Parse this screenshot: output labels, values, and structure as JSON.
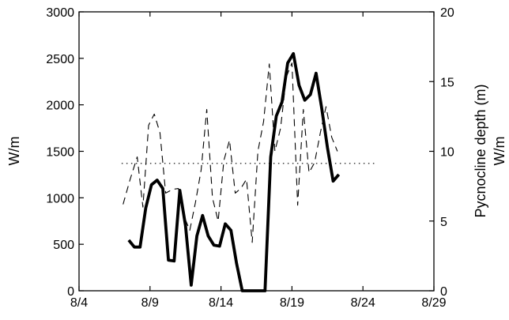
{
  "chart_data": {
    "type": "line",
    "x_ticks": [
      "8/4",
      "8/9",
      "8/14",
      "8/19",
      "8/24",
      "8/29"
    ],
    "x_tick_values": [
      4,
      9,
      14,
      19,
      24,
      29
    ],
    "x_range": [
      4,
      29
    ],
    "ylabel_left": "W/m",
    "ylim_left": [
      0,
      3000
    ],
    "yticks_left": [
      "0",
      "500",
      "1000",
      "1500",
      "2000",
      "2500",
      "3000"
    ],
    "ytick_values_left": [
      0,
      500,
      1000,
      1500,
      2000,
      2500,
      3000
    ],
    "ylabel_right": "Pycnocline depth (m)",
    "ylabel_right_2": "W/m",
    "ylim_right": [
      0,
      20
    ],
    "yticks_right": [
      "0",
      "5",
      "10",
      "15",
      "20"
    ],
    "ytick_values_right": [
      0,
      5,
      10,
      15,
      20
    ],
    "grid": false,
    "series": [
      {
        "style": "thick-solid",
        "axis": "left",
        "color": "#000000",
        "x": [
          7.5,
          7.9,
          8.3,
          8.7,
          9.1,
          9.5,
          9.9,
          10.3,
          10.7,
          11.1,
          11.5,
          11.9,
          12.3,
          12.7,
          13.1,
          13.5,
          13.9,
          14.3,
          14.7,
          15.1,
          15.5,
          15.9,
          16.3,
          16.7,
          17.1,
          17.5,
          17.9,
          18.3,
          18.7,
          19.1,
          19.5,
          19.9,
          20.3,
          20.7,
          21.1,
          21.5,
          21.9,
          22.3,
          22.7,
          23.1,
          23.5,
          23.9,
          24.3,
          24.7,
          25.1,
          25.5
        ],
        "values": [
          545,
          470,
          470,
          890,
          1140,
          1190,
          1100,
          330,
          320,
          1080,
          700,
          60,
          590,
          810,
          590,
          490,
          480,
          720,
          650,
          290,
          0,
          0,
          0,
          0,
          0,
          1440,
          1880,
          2030,
          2450,
          2550,
          2210,
          2050,
          2110,
          2340,
          1960,
          1540,
          1180,
          1250,
          null,
          null,
          null,
          null,
          null,
          null,
          null,
          null
        ]
      },
      {
        "style": "dashed",
        "axis": "left",
        "color": "#000000",
        "x": [
          7.1,
          7.6,
          8.1,
          8.5,
          8.9,
          9.3,
          9.7,
          10.1,
          10.6,
          11.0,
          11.4,
          11.8,
          12.2,
          12.6,
          13.0,
          13.4,
          13.8,
          14.2,
          14.6,
          15.0,
          15.4,
          15.8,
          16.2,
          16.6,
          17.0,
          17.4,
          17.8,
          18.2,
          18.6,
          19.0,
          19.4,
          19.8,
          20.2,
          20.6,
          21.0,
          21.4,
          21.8,
          22.2,
          22.6,
          23.0,
          23.4,
          23.8,
          24.2,
          24.6,
          25.0,
          25.4,
          25.8
        ],
        "values": [
          930,
          1200,
          1440,
          900,
          1780,
          1900,
          1700,
          1050,
          1090,
          1100,
          800,
          650,
          950,
          1300,
          1950,
          1000,
          750,
          1400,
          1620,
          1050,
          1100,
          1200,
          520,
          1500,
          1820,
          2440,
          1500,
          1750,
          2300,
          2450,
          920,
          1950,
          1270,
          1380,
          1700,
          1980,
          1650,
          1500,
          null,
          null,
          null,
          null,
          null,
          null,
          null,
          null,
          null
        ]
      },
      {
        "style": "dotted",
        "axis": "left",
        "color": "#000000",
        "x": [
          7.0,
          24.9
        ],
        "values": [
          1370,
          1370
        ]
      }
    ]
  }
}
